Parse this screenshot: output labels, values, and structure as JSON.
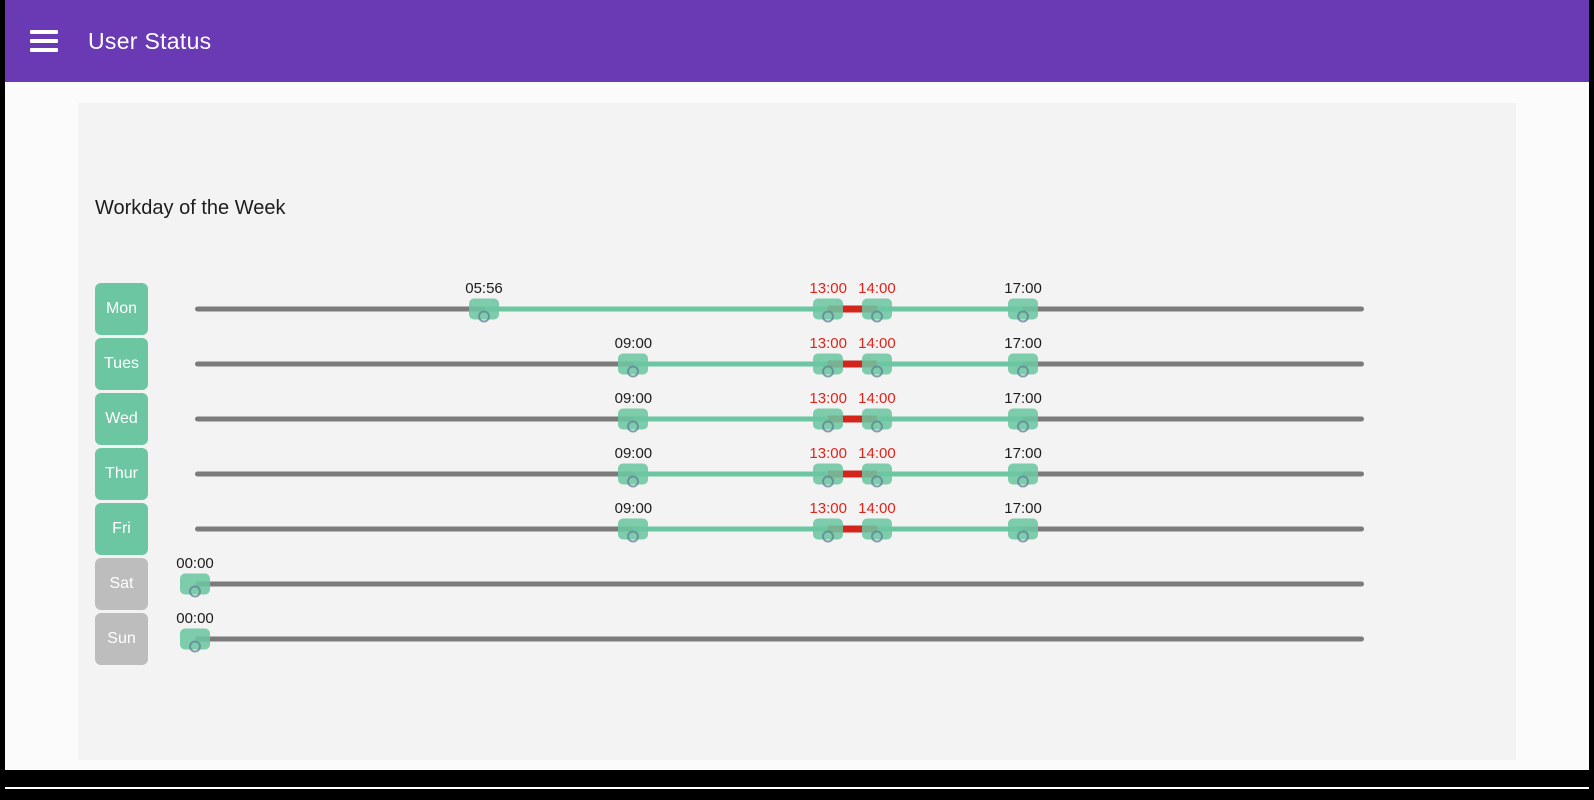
{
  "appbar": {
    "title": "User Status",
    "color": "#693ab4",
    "menu_icon": "hamburger-menu-icon"
  },
  "panel": {
    "title": "Workday of the Week"
  },
  "slider": {
    "scale_min": "00:00",
    "scale_max": "24:00",
    "colors": {
      "active": "#6cc6a1",
      "break": "#d3251c",
      "track": "#7b7b7b",
      "chip_enabled": "#6cc6a1",
      "chip_disabled": "#bdbdbd",
      "time_label": "#1c1c1c",
      "time_label_break": "#e02419"
    }
  },
  "days": [
    {
      "label": "Mon",
      "enabled": true,
      "start": "05:56",
      "break_start": "13:00",
      "break_end": "14:00",
      "end": "17:00"
    },
    {
      "label": "Tues",
      "enabled": true,
      "start": "09:00",
      "break_start": "13:00",
      "break_end": "14:00",
      "end": "17:00"
    },
    {
      "label": "Wed",
      "enabled": true,
      "start": "09:00",
      "break_start": "13:00",
      "break_end": "14:00",
      "end": "17:00"
    },
    {
      "label": "Thur",
      "enabled": true,
      "start": "09:00",
      "break_start": "13:00",
      "break_end": "14:00",
      "end": "17:00"
    },
    {
      "label": "Fri",
      "enabled": true,
      "start": "09:00",
      "break_start": "13:00",
      "break_end": "14:00",
      "end": "17:00"
    },
    {
      "label": "Sat",
      "enabled": false,
      "start": "00:00"
    },
    {
      "label": "Sun",
      "enabled": false,
      "start": "00:00"
    }
  ]
}
